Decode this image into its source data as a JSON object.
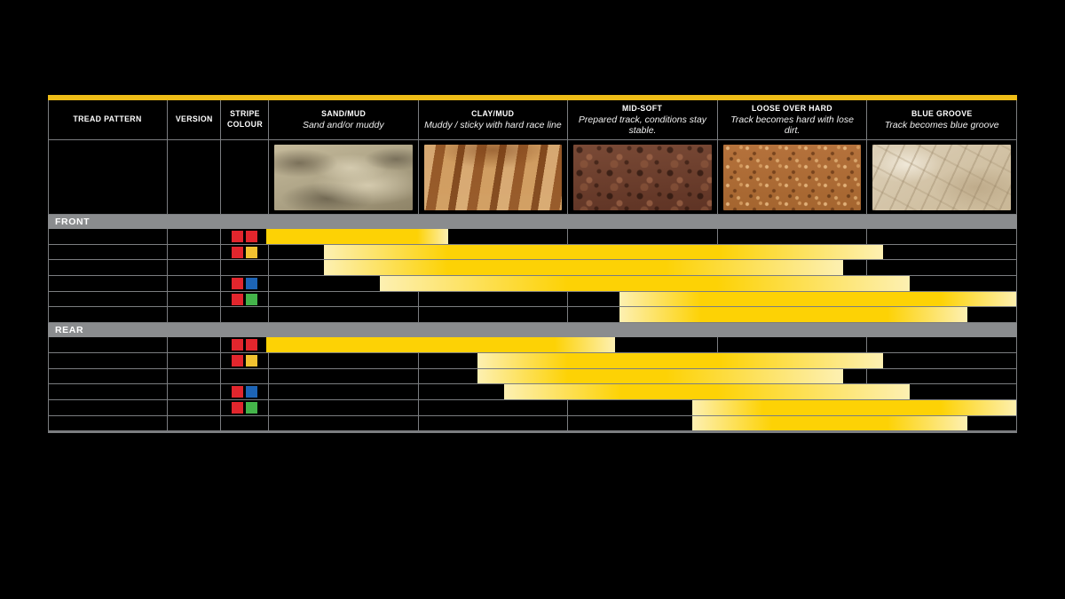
{
  "colors": {
    "background": "#000000",
    "accent_yellow": "#eebd17",
    "bar_yellow": "#fdd205",
    "bar_fade": "#fdf0b2",
    "grid_gray": "#7b7d80",
    "band_gray": "#8a8c8e",
    "chip_red": "#e2262d",
    "chip_yellow": "#f2c230",
    "chip_blue": "#1d64b5",
    "chip_green": "#44b44a"
  },
  "header": {
    "columns": [
      {
        "label": "TREAD PATTERN",
        "sublabel": ""
      },
      {
        "label": "VERSION",
        "sublabel": ""
      },
      {
        "label": "STRIPE COLOUR",
        "sublabel": ""
      },
      {
        "label": "SAND/MUD",
        "sublabel": "Sand and/or muddy"
      },
      {
        "label": "CLAY/MUD",
        "sublabel": "Muddy / sticky with hard race line"
      },
      {
        "label": "MID-SOFT",
        "sublabel": "Prepared track, conditions stay stable."
      },
      {
        "label": "LOOSE OVER HARD",
        "sublabel": "Track becomes hard with lose dirt."
      },
      {
        "label": "BLUE GROOVE",
        "sublabel": "Track becomes blue groove"
      }
    ]
  },
  "terrain_photos": [
    "sand",
    "clay",
    "midsoft",
    "loose",
    "bluegroove"
  ],
  "sections": [
    {
      "label": "FRONT",
      "rows": [
        {
          "tread": "",
          "version": "",
          "stripe_chips": [
            "red",
            "red"
          ],
          "bar": [
            245,
            245,
            415,
            450
          ],
          "edge_fade": false
        },
        {
          "tread": "",
          "version": "",
          "stripe_chips": [
            "red",
            "yellow"
          ],
          "bar": [
            310,
            450,
            755,
            940
          ],
          "edge_fade": false
        },
        {
          "tread": "",
          "version": "",
          "stripe_chips": [],
          "bar": [
            310,
            450,
            695,
            895
          ],
          "edge_fade": false
        },
        {
          "tread": "",
          "version": "",
          "stripe_chips": [
            "red",
            "blue"
          ],
          "bar": [
            373,
            585,
            752,
            970
          ],
          "edge_fade": false
        },
        {
          "tread": "",
          "version": "",
          "stripe_chips": [
            "red",
            "green"
          ],
          "bar": [
            643,
            735,
            1005,
            1092
          ],
          "edge_fade": true
        },
        {
          "tread": "",
          "version": "",
          "stripe_chips": [],
          "bar": [
            643,
            735,
            945,
            1035
          ],
          "edge_fade": false
        }
      ]
    },
    {
      "label": "REAR",
      "rows": [
        {
          "tread": "",
          "version": "",
          "stripe_chips": [
            "red",
            "red"
          ],
          "bar": [
            245,
            245,
            570,
            638
          ],
          "edge_fade": false
        },
        {
          "tread": "",
          "version": "",
          "stripe_chips": [
            "red",
            "yellow"
          ],
          "bar": [
            483,
            585,
            755,
            940
          ],
          "edge_fade": false
        },
        {
          "tread": "",
          "version": "",
          "stripe_chips": [],
          "bar": [
            483,
            585,
            695,
            895
          ],
          "edge_fade": false
        },
        {
          "tread": "",
          "version": "",
          "stripe_chips": [
            "red",
            "blue"
          ],
          "bar": [
            513,
            645,
            752,
            970
          ],
          "edge_fade": false
        },
        {
          "tread": "",
          "version": "",
          "stripe_chips": [
            "red",
            "green"
          ],
          "bar": [
            725,
            805,
            1005,
            1092
          ],
          "edge_fade": true
        },
        {
          "tread": "",
          "version": "",
          "stripe_chips": [],
          "bar": [
            725,
            815,
            945,
            1035
          ],
          "edge_fade": false
        }
      ]
    }
  ],
  "chart_data": {
    "type": "bar",
    "subtype": "horizontal-condition-ranges",
    "title": "",
    "categories": [
      "SAND/MUD",
      "CLAY/MUD",
      "MID-SOFT",
      "LOOSE OVER HARD",
      "BLUE GROOVE"
    ],
    "axis_range": [
      0,
      5
    ],
    "legend_position": "none",
    "grid": true,
    "series": [
      {
        "section": "FRONT",
        "row": 1,
        "stripe": "red/red",
        "range_units": [
          0.0,
          1.2
        ]
      },
      {
        "section": "FRONT",
        "row": 2,
        "stripe": "red/yellow",
        "range_units": [
          0.38,
          4.1
        ]
      },
      {
        "section": "FRONT",
        "row": 3,
        "stripe": "none",
        "range_units": [
          0.38,
          3.84
        ]
      },
      {
        "section": "FRONT",
        "row": 4,
        "stripe": "red/blue",
        "range_units": [
          0.76,
          4.28
        ]
      },
      {
        "section": "FRONT",
        "row": 5,
        "stripe": "red/green",
        "range_units": [
          2.35,
          5.0
        ]
      },
      {
        "section": "FRONT",
        "row": 6,
        "stripe": "none",
        "range_units": [
          2.35,
          4.66
        ]
      },
      {
        "section": "REAR",
        "row": 1,
        "stripe": "red/red",
        "range_units": [
          0.0,
          2.32
        ]
      },
      {
        "section": "REAR",
        "row": 2,
        "stripe": "red/yellow",
        "range_units": [
          1.4,
          4.1
        ]
      },
      {
        "section": "REAR",
        "row": 3,
        "stripe": "none",
        "range_units": [
          1.4,
          3.84
        ]
      },
      {
        "section": "REAR",
        "row": 4,
        "stripe": "red/blue",
        "range_units": [
          1.58,
          4.28
        ]
      },
      {
        "section": "REAR",
        "row": 5,
        "stripe": "red/green",
        "range_units": [
          2.83,
          5.0
        ]
      },
      {
        "section": "REAR",
        "row": 6,
        "stripe": "none",
        "range_units": [
          2.83,
          4.66
        ]
      }
    ]
  }
}
